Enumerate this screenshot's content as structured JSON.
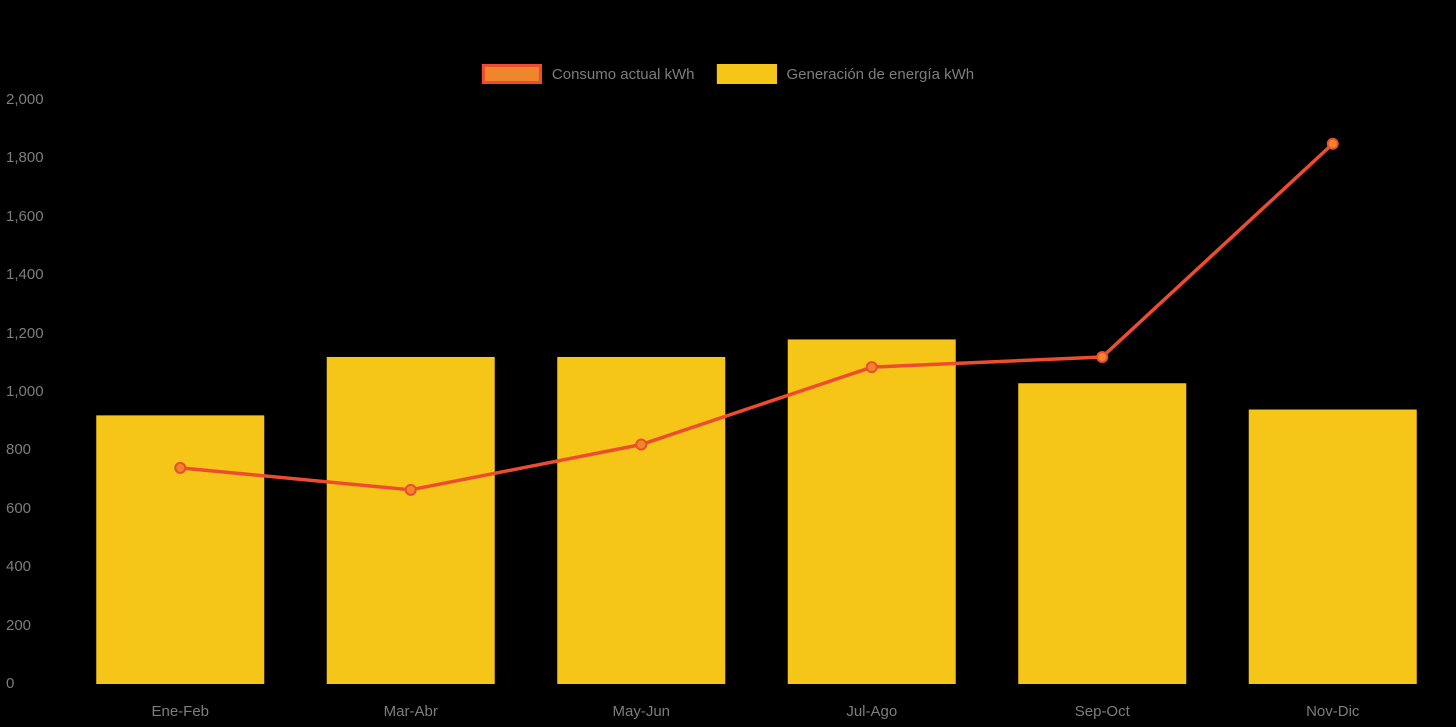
{
  "chart_data": {
    "type": "bar+line",
    "title": "",
    "xlabel": "",
    "ylabel": "",
    "categories": [
      "Ene-Feb",
      "Mar-Abr",
      "May-Jun",
      "Jul-Ago",
      "Sep-Oct",
      "Nov-Dic"
    ],
    "series": [
      {
        "name": "Consumo actual kWh",
        "type": "line",
        "color": "#ED4C2F",
        "marker_fill": "#F0862B",
        "values": [
          740,
          665,
          820,
          1085,
          1120,
          1850
        ]
      },
      {
        "name": "Generación de energía kWh",
        "type": "bar",
        "color": "#F5C518",
        "values": [
          920,
          1120,
          1120,
          1180,
          1030,
          940
        ]
      }
    ],
    "ylim": [
      0,
      2000
    ],
    "y_tick_step": 200,
    "y_tick_labels": [
      "0",
      "200",
      "400",
      "600",
      "800",
      "1,000",
      "1,200",
      "1,400",
      "1,600",
      "1,800",
      "2,000"
    ],
    "grid": false,
    "legend_position": "top-center",
    "background_color": "#000000",
    "text_color": "#7d7d7d"
  }
}
